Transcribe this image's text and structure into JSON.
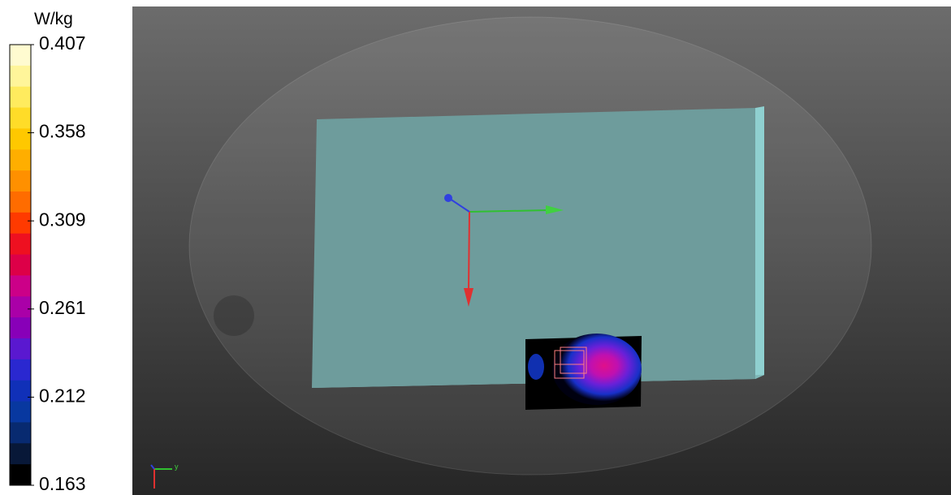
{
  "colorbar": {
    "unit": "W/kg",
    "ticks": [
      "0.407",
      "0.358",
      "0.309",
      "0.261",
      "0.212",
      "0.163"
    ]
  },
  "axis_indicator": {
    "label": "y"
  }
}
